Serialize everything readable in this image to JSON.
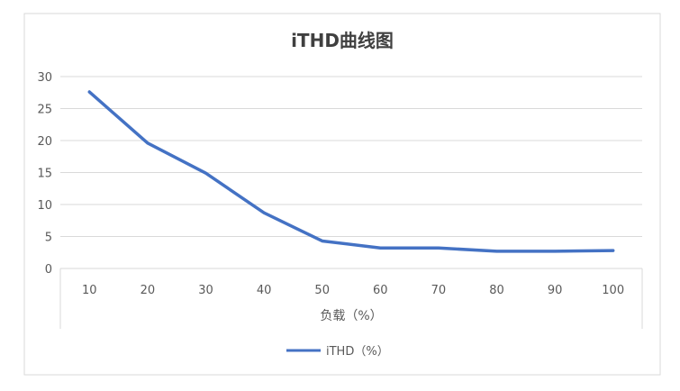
{
  "chart_data": {
    "type": "line",
    "title": "iTHD曲线图",
    "xlabel": "负载（%）",
    "ylabel": "",
    "categories": [
      "10",
      "20",
      "30",
      "40",
      "50",
      "60",
      "70",
      "80",
      "90",
      "100"
    ],
    "y_ticks": [
      "0",
      "5",
      "10",
      "15",
      "20",
      "25",
      "30"
    ],
    "ylim": [
      0,
      30
    ],
    "grid": true,
    "legend_position": "bottom",
    "series": [
      {
        "name": "iTHD（%）",
        "color": "#4472c4",
        "values": [
          27.6,
          19.6,
          14.9,
          8.7,
          4.3,
          3.2,
          3.2,
          2.7,
          2.7,
          2.8
        ]
      }
    ]
  }
}
